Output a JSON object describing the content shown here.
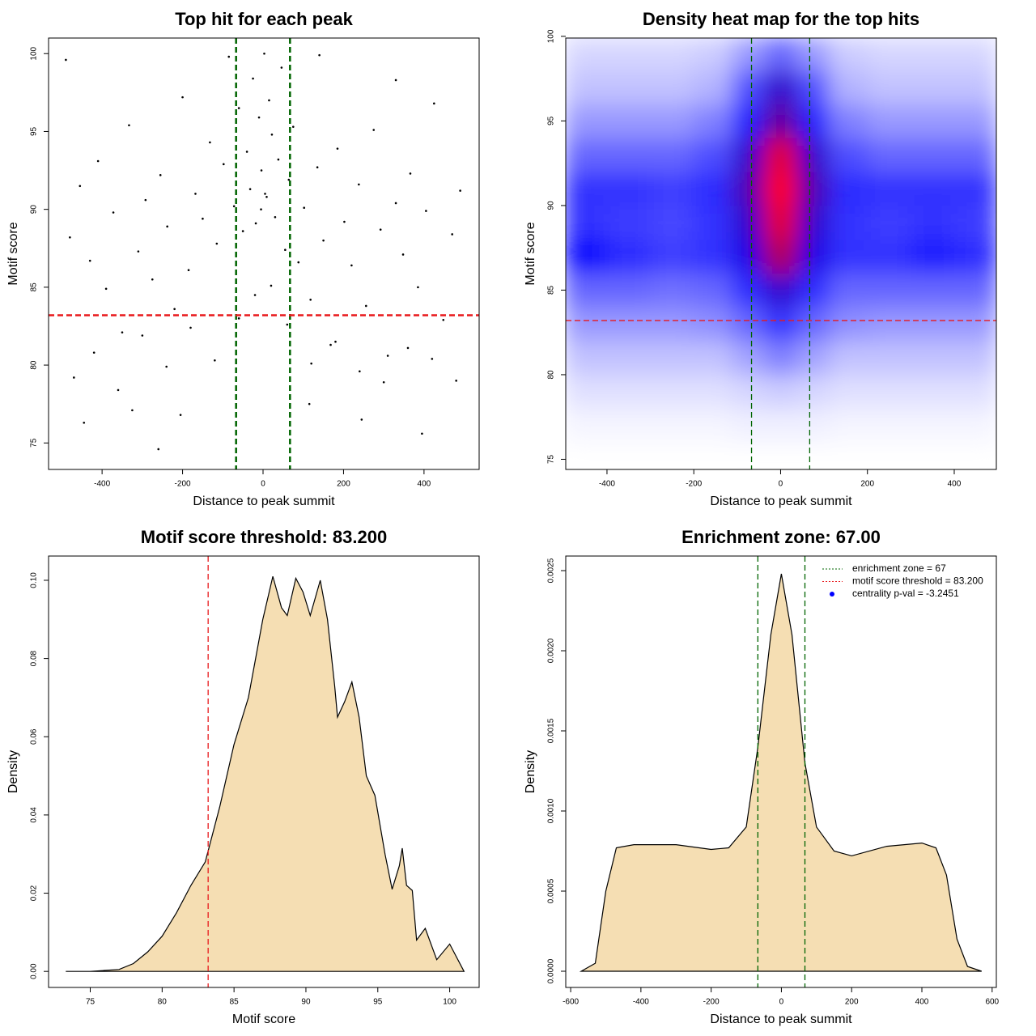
{
  "chart_data": [
    {
      "type": "scatter",
      "title": "Top hit for each peak",
      "x_label": "Distance to peak summit",
      "y_label": "Motif score",
      "x": [
        -480,
        -455,
        -430,
        -410,
        -390,
        -372,
        -350,
        -333,
        -310,
        -292,
        -275,
        -255,
        -238,
        -220,
        -200,
        -185,
        -168,
        -150,
        -132,
        -115,
        -98,
        -85,
        -72,
        -60,
        -50,
        -40,
        -32,
        -25,
        -18,
        -10,
        -4,
        3,
        9,
        15,
        22,
        30,
        38,
        46,
        55,
        64,
        75,
        88,
        102,
        118,
        135,
        150,
        168,
        185,
        202,
        220,
        238,
        256,
        275,
        292,
        310,
        330,
        348,
        366,
        385,
        405,
        425,
        448,
        470,
        490,
        -470,
        -420,
        -360,
        -300,
        -240,
        -180,
        -120,
        -60,
        -20,
        20,
        60,
        120,
        180,
        240,
        300,
        360,
        420,
        480,
        -445,
        -325,
        -205,
        -5,
        5,
        115,
        245,
        395,
        -260,
        140,
        -490,
        330
      ],
      "y": [
        88.2,
        91.5,
        86.7,
        93.1,
        84.9,
        89.8,
        82.1,
        95.4,
        87.3,
        90.6,
        85.5,
        92.2,
        88.9,
        83.6,
        97.2,
        86.1,
        91.0,
        89.4,
        94.3,
        87.8,
        92.9,
        99.8,
        90.2,
        96.5,
        88.6,
        93.7,
        91.3,
        98.4,
        89.1,
        95.9,
        92.5,
        100,
        90.8,
        97.0,
        94.8,
        89.5,
        93.2,
        99.1,
        87.4,
        91.9,
        95.3,
        86.6,
        90.1,
        84.2,
        92.7,
        88.0,
        81.3,
        93.9,
        89.2,
        86.4,
        91.6,
        83.8,
        95.1,
        88.7,
        80.6,
        90.4,
        87.1,
        92.3,
        85.0,
        89.9,
        96.8,
        82.9,
        88.4,
        91.2,
        79.2,
        80.8,
        78.4,
        81.9,
        79.9,
        82.4,
        80.3,
        83.0,
        84.5,
        85.1,
        82.6,
        80.1,
        81.5,
        79.6,
        78.9,
        81.1,
        80.4,
        79.0,
        76.3,
        77.1,
        76.8,
        90.0,
        91.0,
        77.5,
        76.5,
        75.6,
        74.6,
        99.9,
        99.6,
        98.3
      ],
      "color": "#000000",
      "xlim": [
        -533,
        537
      ],
      "ylim": [
        73.3,
        101.0
      ],
      "xticks": [
        -400,
        -200,
        0,
        200,
        400
      ],
      "yticks": [
        75,
        80,
        85,
        90,
        95,
        100
      ],
      "vlines": [
        {
          "value": -67,
          "color": "#006400"
        },
        {
          "value": 67,
          "color": "#006400"
        }
      ],
      "hlines": [
        {
          "value": 83.2,
          "color": "#e8191c"
        }
      ],
      "ref_line_width": 2.5
    },
    {
      "type": "heatmap",
      "title": "Density heat map for the top hits",
      "x_label": "Distance to peak summit",
      "y_label": "Motif score",
      "x": [
        -450,
        -350,
        -250,
        -150,
        -75,
        0,
        75,
        150,
        250,
        350,
        450
      ],
      "y": [
        77,
        79,
        81,
        83,
        85,
        87,
        89,
        91,
        93,
        95,
        97,
        99
      ],
      "z": [
        [
          0.02,
          0.02,
          0.02,
          0.02,
          0.03,
          0.03,
          0.03,
          0.02,
          0.02,
          0.02,
          0.02
        ],
        [
          0.06,
          0.06,
          0.06,
          0.06,
          0.08,
          0.1,
          0.08,
          0.06,
          0.06,
          0.06,
          0.06
        ],
        [
          0.12,
          0.12,
          0.12,
          0.12,
          0.18,
          0.25,
          0.18,
          0.12,
          0.12,
          0.12,
          0.12
        ],
        [
          0.2,
          0.2,
          0.2,
          0.22,
          0.3,
          0.4,
          0.3,
          0.22,
          0.2,
          0.2,
          0.2
        ],
        [
          0.3,
          0.3,
          0.28,
          0.3,
          0.42,
          0.6,
          0.42,
          0.3,
          0.3,
          0.3,
          0.3
        ],
        [
          0.5,
          0.42,
          0.38,
          0.4,
          0.55,
          0.85,
          0.55,
          0.4,
          0.4,
          0.45,
          0.42
        ],
        [
          0.4,
          0.38,
          0.36,
          0.4,
          0.6,
          0.95,
          0.6,
          0.4,
          0.38,
          0.4,
          0.38
        ],
        [
          0.4,
          0.4,
          0.38,
          0.42,
          0.65,
          1.0,
          0.65,
          0.42,
          0.4,
          0.4,
          0.4
        ],
        [
          0.3,
          0.3,
          0.3,
          0.35,
          0.6,
          0.95,
          0.6,
          0.35,
          0.3,
          0.3,
          0.3
        ],
        [
          0.2,
          0.2,
          0.2,
          0.25,
          0.45,
          0.7,
          0.45,
          0.25,
          0.2,
          0.2,
          0.2
        ],
        [
          0.12,
          0.12,
          0.12,
          0.15,
          0.35,
          0.6,
          0.35,
          0.15,
          0.12,
          0.12,
          0.12
        ],
        [
          0.08,
          0.08,
          0.08,
          0.1,
          0.2,
          0.3,
          0.2,
          0.1,
          0.08,
          0.08,
          0.08
        ]
      ],
      "colors": [
        "#ffffff",
        "#0000ff",
        "#ff0000"
      ],
      "xlim": [
        -495,
        497
      ],
      "ylim": [
        74.4,
        99.9
      ],
      "xticks": [
        -400,
        -200,
        0,
        200,
        400
      ],
      "yticks": [
        75,
        80,
        85,
        90,
        95,
        100
      ],
      "vlines": [
        {
          "value": -67,
          "color": "#006400"
        },
        {
          "value": 67,
          "color": "#006400"
        }
      ],
      "hlines": [
        {
          "value": 83.2,
          "color": "#e8191c"
        }
      ],
      "ref_line_width": 1.3
    },
    {
      "type": "area",
      "title": "Motif score threshold: 83.200",
      "x_label": "Motif score",
      "y_label": "Density",
      "x": [
        73.3,
        75,
        77,
        78,
        79,
        80,
        81,
        82,
        83,
        84,
        85,
        86,
        86.5,
        87,
        87.7,
        88.3,
        88.7,
        89.3,
        89.8,
        90.3,
        91,
        91.5,
        92,
        92.2,
        92.7,
        93.2,
        93.7,
        94.2,
        94.8,
        95.5,
        96,
        96.5,
        96.7,
        97,
        97.4,
        97.7,
        98.3,
        99.1,
        100,
        101
      ],
      "values": [
        0,
        0,
        0.0005,
        0.002,
        0.005,
        0.009,
        0.015,
        0.022,
        0.028,
        0.042,
        0.058,
        0.07,
        0.08,
        0.09,
        0.101,
        0.093,
        0.091,
        0.1005,
        0.097,
        0.091,
        0.1,
        0.09,
        0.073,
        0.065,
        0.069,
        0.074,
        0.065,
        0.05,
        0.045,
        0.03,
        0.021,
        0.027,
        0.0315,
        0.022,
        0.0207,
        0.008,
        0.011,
        0.003,
        0.007,
        0
      ],
      "color": "#f5deb3",
      "xlim": [
        72.1,
        102.05
      ],
      "ylim": [
        -0.0041,
        0.1062
      ],
      "xticks": [
        75,
        80,
        85,
        90,
        95,
        100
      ],
      "yticks": [
        {
          "value": 0,
          "label": "0.00"
        },
        {
          "value": 0.02,
          "label": "0.02"
        },
        {
          "value": 0.04,
          "label": "0.04"
        },
        {
          "value": 0.06,
          "label": "0.06"
        },
        {
          "value": 0.08,
          "label": "0.08"
        },
        {
          "value": 0.1,
          "label": "0.10"
        }
      ],
      "vlines": [
        {
          "value": 83.2,
          "color": "#e8191c"
        }
      ],
      "hlines": [],
      "ref_line_width": 1.3
    },
    {
      "type": "area",
      "title": "Enrichment zone: 67.00",
      "x_label": "Distance to peak summit",
      "y_label": "Density",
      "x": [
        -570,
        -530,
        -500,
        -470,
        -420,
        -300,
        -200,
        -150,
        -100,
        -67,
        -30,
        0,
        30,
        67,
        100,
        150,
        200,
        300,
        400,
        440,
        470,
        500,
        530,
        570
      ],
      "values": [
        0,
        5e-05,
        0.0005,
        0.00077,
        0.00079,
        0.00079,
        0.00076,
        0.00077,
        0.0009,
        0.0014,
        0.0021,
        0.00248,
        0.0021,
        0.0013,
        0.0009,
        0.00075,
        0.00072,
        0.00078,
        0.0008,
        0.00077,
        0.0006,
        0.0002,
        3e-05,
        0
      ],
      "color": "#f5deb3",
      "xlim": [
        -614,
        612
      ],
      "ylim": [
        -0.000101,
        0.002591
      ],
      "xticks": [
        -600,
        -400,
        -200,
        0,
        200,
        400,
        600
      ],
      "yticks": [
        {
          "value": 0,
          "label": "0.0000"
        },
        {
          "value": 0.0005,
          "label": "0.0005"
        },
        {
          "value": 0.001,
          "label": "0.0010"
        },
        {
          "value": 0.0015,
          "label": "0.0015"
        },
        {
          "value": 0.002,
          "label": "0.0020"
        },
        {
          "value": 0.0025,
          "label": "0.0025"
        }
      ],
      "vlines": [
        {
          "value": -67,
          "color": "#006400"
        },
        {
          "value": 67,
          "color": "#006400"
        }
      ],
      "hlines": [],
      "ref_line_width": 1.3,
      "legend": [
        {
          "label": "enrichment zone = 67",
          "color": "#006400",
          "marker": "line"
        },
        {
          "label": "motif score threshold = 83.200",
          "color": "#e8191c",
          "marker": "line"
        },
        {
          "label": "centrality p-val = -3.2451",
          "color": "#0000ff",
          "marker": "point"
        }
      ],
      "legend_position": "top-right"
    }
  ]
}
